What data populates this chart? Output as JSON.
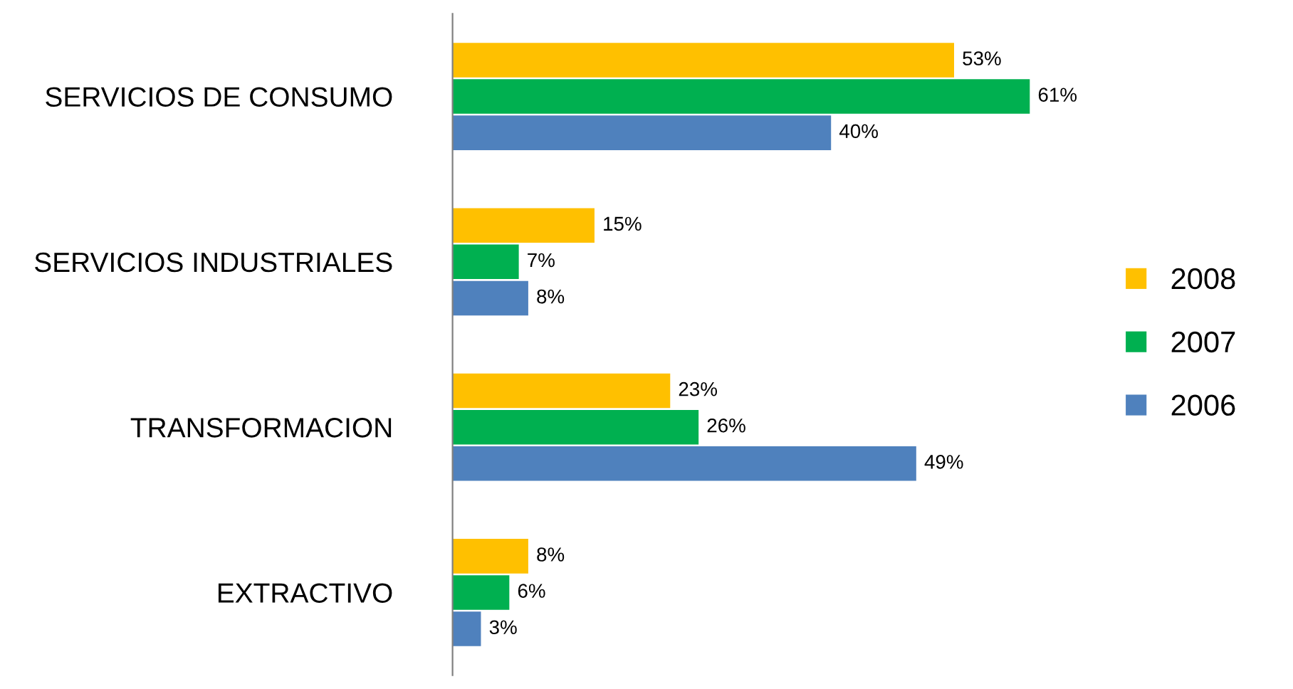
{
  "chart_data": {
    "type": "bar",
    "orientation": "horizontal",
    "categories": [
      "SERVICIOS DE CONSUMO",
      "SERVICIOS INDUSTRIALES",
      "TRANSFORMACION",
      "EXTRACTIVO"
    ],
    "series": [
      {
        "name": "2008",
        "color": "#ffc000",
        "values": [
          53,
          15,
          23,
          8
        ],
        "value_labels": [
          "53%",
          "15%",
          "23%",
          "8%"
        ]
      },
      {
        "name": "2007",
        "color": "#00b050",
        "values": [
          61,
          7,
          26,
          6
        ],
        "value_labels": [
          "61%",
          "7%",
          "26%",
          "6%"
        ]
      },
      {
        "name": "2006",
        "color": "#4f81bd",
        "values": [
          40,
          8,
          49,
          3
        ],
        "value_labels": [
          "40%",
          "8%",
          "49%",
          "3%"
        ]
      }
    ],
    "legend": "right",
    "grid": false
  }
}
